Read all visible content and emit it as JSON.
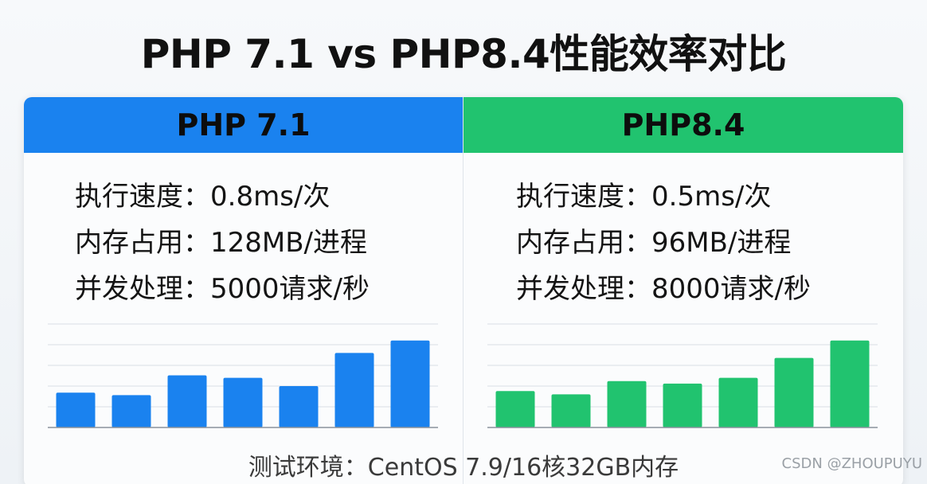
{
  "title": "PHP 7.1 vs PHP8.4性能效率对比",
  "colors": {
    "php71": "#1a82ef",
    "php84": "#21c36f",
    "grid": "#d9dee5",
    "axis": "#8a929c"
  },
  "panels": [
    {
      "header": "PHP 7.1",
      "stats": [
        {
          "label": "执行速度：",
          "value": "0.8ms/次"
        },
        {
          "label": "内存占用：",
          "value": "128MB/进程"
        },
        {
          "label": "并发处理：",
          "value": "5000请求/秒"
        }
      ]
    },
    {
      "header": "PHP8.4",
      "stats": [
        {
          "label": "执行速度：",
          "value": "0.5ms/次"
        },
        {
          "label": "内存占用：",
          "value": "96MB/进程"
        },
        {
          "label": "并发处理：",
          "value": "8000请求/秒"
        }
      ]
    }
  ],
  "chart_data": [
    {
      "type": "bar",
      "series": [
        {
          "values": [
            42,
            39,
            63,
            60,
            50,
            90,
            105
          ]
        }
      ],
      "ylim": [
        0,
        125
      ],
      "grid": true,
      "color": "#1a82ef"
    },
    {
      "type": "bar",
      "series": [
        {
          "values": [
            44,
            40,
            56,
            53,
            60,
            84,
            105
          ]
        }
      ],
      "ylim": [
        0,
        125
      ],
      "grid": true,
      "color": "#21c36f"
    }
  ],
  "footer": "测试环境：CentOS 7.9/16核32GB内存",
  "watermark": "CSDN @ZHOUPUYU"
}
